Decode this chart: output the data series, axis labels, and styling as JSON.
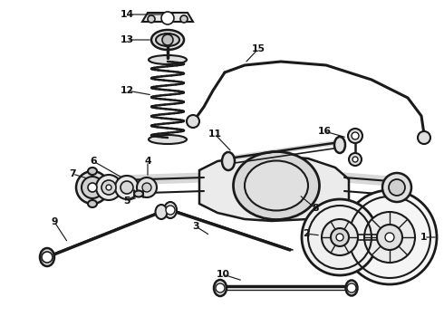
{
  "background_color": "#ffffff",
  "line_color": "#1a1a1a",
  "text_color": "#111111",
  "fig_width": 4.9,
  "fig_height": 3.6,
  "dpi": 100
}
